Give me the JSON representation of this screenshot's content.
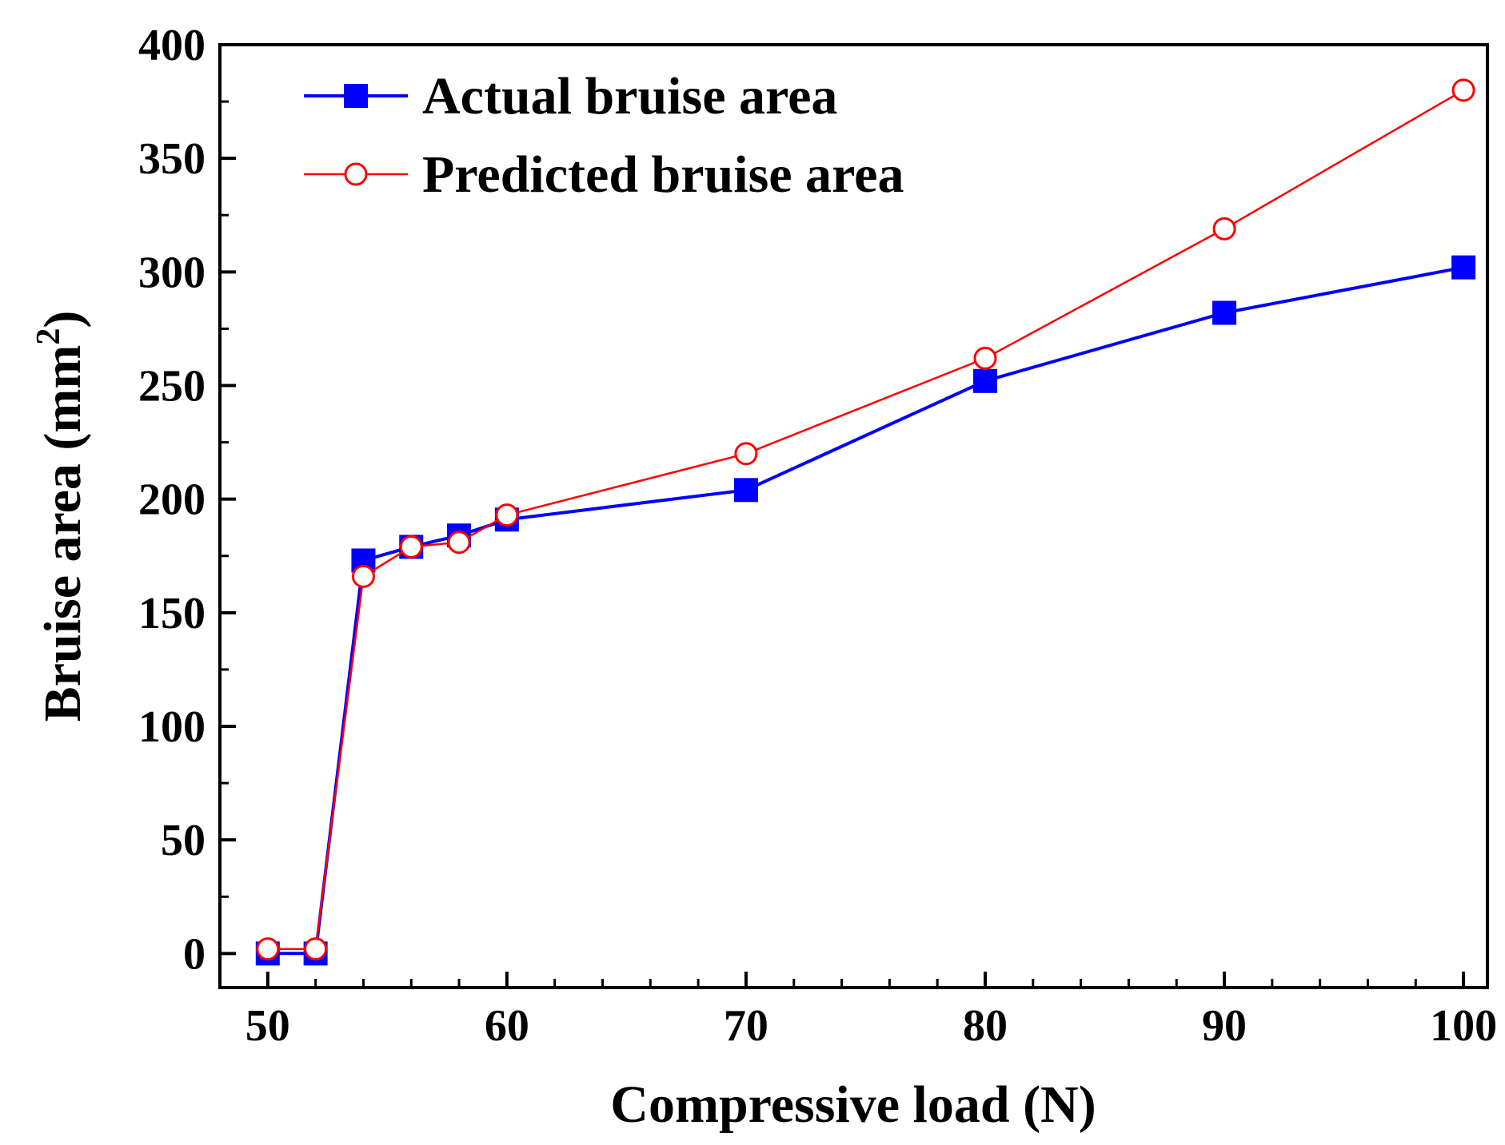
{
  "chart_data": {
    "type": "line",
    "xlabel": "Compressive load (N)",
    "ylabel_text": "Bruise area (mm",
    "ylabel_superscript": "2",
    "ylabel_close": ")",
    "xlim": [
      48,
      101
    ],
    "ylim": [
      -15,
      400
    ],
    "x_ticks": [
      50,
      60,
      70,
      80,
      90,
      100
    ],
    "x_minor_ticks": [
      52,
      54,
      56,
      58,
      62,
      64,
      66,
      68,
      72,
      74,
      76,
      78,
      82,
      84,
      86,
      88,
      92,
      94,
      96,
      98
    ],
    "y_ticks": [
      0,
      50,
      100,
      150,
      200,
      250,
      300,
      350,
      400
    ],
    "y_minor_ticks": [
      25,
      75,
      125,
      175,
      225,
      275,
      325,
      375
    ],
    "grid": false,
    "legend_position": "top-left",
    "series": [
      {
        "name": "Actual bruise area",
        "color": "#0000ff",
        "marker": "filled-square",
        "x": [
          50,
          52,
          54,
          56,
          58,
          60,
          70,
          80,
          90,
          100
        ],
        "y": [
          0,
          0,
          173,
          179,
          184,
          191,
          204,
          252,
          282,
          302
        ]
      },
      {
        "name": "Predicted bruise area",
        "color": "#ff0000",
        "marker": "open-circle",
        "x": [
          50,
          52,
          54,
          56,
          58,
          60,
          70,
          80,
          90,
          100
        ],
        "y": [
          2,
          2,
          166,
          179,
          181,
          193,
          220,
          262,
          319,
          380
        ]
      }
    ]
  }
}
